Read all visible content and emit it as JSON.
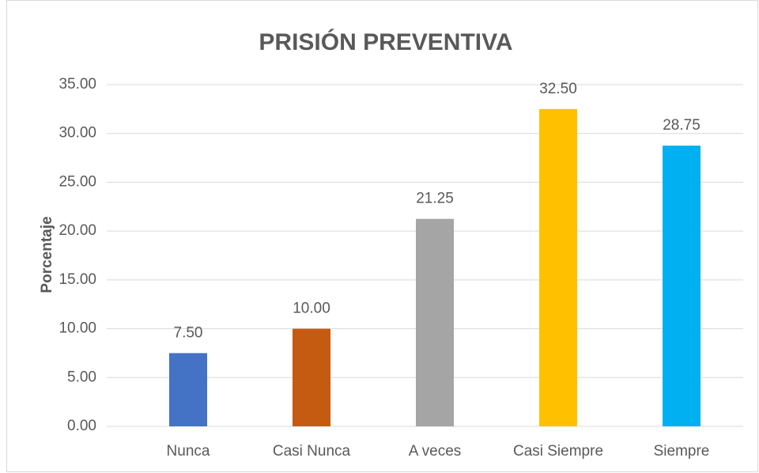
{
  "chart_data": {
    "type": "bar",
    "title": "PRISIÓN PREVENTIVA",
    "y_label": "Porcentaje",
    "categories": [
      "Nunca",
      "Casi Nunca",
      "A veces",
      "Casi Siempre",
      "Siempre"
    ],
    "values": [
      7.5,
      10,
      21.25,
      32.5,
      28.75
    ],
    "value_labels": [
      "7.50",
      "10.00",
      "21.25",
      "32.50",
      "28.75"
    ],
    "colors": [
      "#4472c4",
      "#c55a11",
      "#a5a5a5",
      "#ffc000",
      "#00b0f0"
    ],
    "ylim": [
      0,
      35
    ],
    "yticks": [
      {
        "value": 0,
        "label": "0.00"
      },
      {
        "value": 5,
        "label": "5.00"
      },
      {
        "value": 10,
        "label": "10.00"
      },
      {
        "value": 15,
        "label": "15.00"
      },
      {
        "value": 20,
        "label": "20.00"
      },
      {
        "value": 25,
        "label": "25.00"
      },
      {
        "value": 30,
        "label": "30.00"
      },
      {
        "value": 35,
        "label": "35.00"
      }
    ],
    "grid": true
  }
}
